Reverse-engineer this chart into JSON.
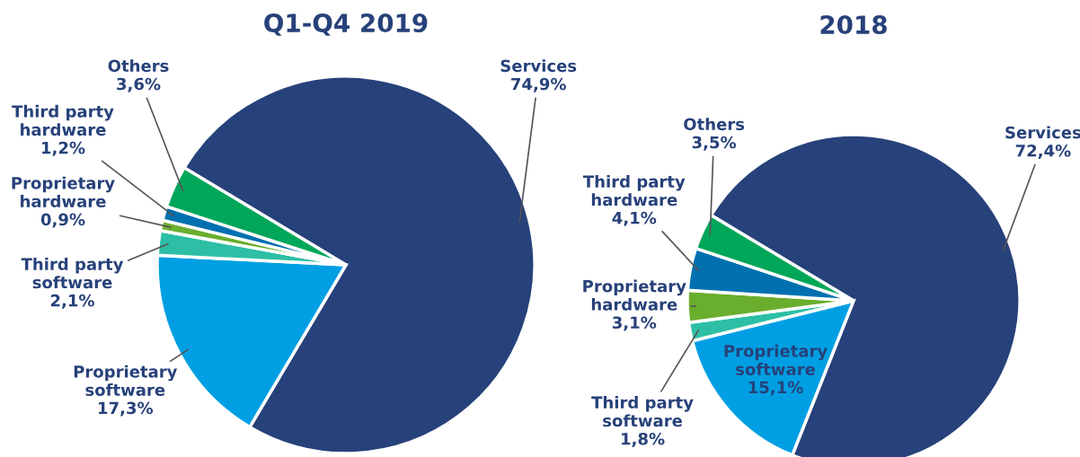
{
  "chart_data": [
    {
      "type": "pie",
      "title": "Q1-Q4 2019",
      "categories": [
        "Services",
        "Proprietary\nsoftware",
        "Third party\nsoftware",
        "Proprietary\nhardware",
        "Third party\nhardware",
        "Others"
      ],
      "values": [
        74.9,
        17.3,
        2.1,
        0.9,
        1.2,
        3.6
      ],
      "value_labels": [
        "74,9%",
        "17,3%",
        "2,1%",
        "0,9%",
        "1,2%",
        "3,6%"
      ],
      "colors": [
        "#27417a",
        "#009fe3",
        "#2cbfa5",
        "#6aae2e",
        "#0070b0",
        "#00a65a"
      ]
    },
    {
      "type": "pie",
      "title": "2018",
      "categories": [
        "Services",
        "Proprietary\nsoftware",
        "Third party\nsoftware",
        "Proprietary\nhardware",
        "Third party\nhardware",
        "Others"
      ],
      "values": [
        72.4,
        15.1,
        1.8,
        3.1,
        4.1,
        3.5
      ],
      "value_labels": [
        "72,4%",
        "15,1%",
        "1,8%",
        "3,1%",
        "4,1%",
        "3,5%"
      ],
      "colors": [
        "#27417a",
        "#009fe3",
        "#2cbfa5",
        "#6aae2e",
        "#0070b0",
        "#00a65a"
      ]
    }
  ]
}
